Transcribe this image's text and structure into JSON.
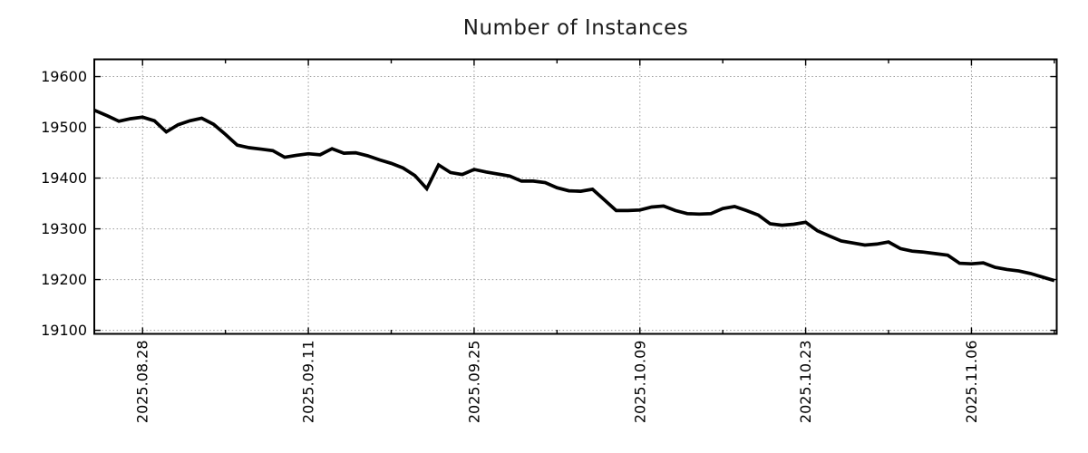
{
  "chart_data": {
    "type": "line",
    "title": "Number of Instances",
    "legend": "none",
    "grid": true,
    "background": "#ffffff",
    "line_color": "#000000",
    "grid_color": "#9a9a9a",
    "text_color": "#000000",
    "ylim": [
      19093,
      19634
    ],
    "y_ticks": [
      19100,
      19200,
      19300,
      19400,
      19500,
      19600
    ],
    "x_major_ticks": [
      {
        "index": 4,
        "label": "2025.08.28"
      },
      {
        "index": 18,
        "label": "2025.09.11"
      },
      {
        "index": 32,
        "label": "2025.09.25"
      },
      {
        "index": 46,
        "label": "2025.10.09"
      },
      {
        "index": 60,
        "label": "2025.10.23"
      },
      {
        "index": 74,
        "label": "2025.11.06"
      }
    ],
    "x_minor_tick_indices": [
      11,
      25,
      39,
      53,
      67,
      81
    ],
    "dates": [
      "2025.08.24",
      "2025.08.25",
      "2025.08.26",
      "2025.08.27",
      "2025.08.28",
      "2025.08.29",
      "2025.08.30",
      "2025.08.31",
      "2025.09.01",
      "2025.09.02",
      "2025.09.03",
      "2025.09.04",
      "2025.09.05",
      "2025.09.06",
      "2025.09.07",
      "2025.09.08",
      "2025.09.09",
      "2025.09.10",
      "2025.09.11",
      "2025.09.12",
      "2025.09.13",
      "2025.09.14",
      "2025.09.15",
      "2025.09.16",
      "2025.09.17",
      "2025.09.18",
      "2025.09.19",
      "2025.09.20",
      "2025.09.21",
      "2025.09.22",
      "2025.09.23",
      "2025.09.24",
      "2025.09.25",
      "2025.09.26",
      "2025.09.27",
      "2025.09.28",
      "2025.09.29",
      "2025.09.30",
      "2025.10.01",
      "2025.10.02",
      "2025.10.03",
      "2025.10.04",
      "2025.10.05",
      "2025.10.06",
      "2025.10.07",
      "2025.10.08",
      "2025.10.09",
      "2025.10.10",
      "2025.10.11",
      "2025.10.12",
      "2025.10.13",
      "2025.10.14",
      "2025.10.15",
      "2025.10.16",
      "2025.10.17",
      "2025.10.18",
      "2025.10.19",
      "2025.10.20",
      "2025.10.21",
      "2025.10.22",
      "2025.10.23",
      "2025.10.24",
      "2025.10.25",
      "2025.10.26",
      "2025.10.27",
      "2025.10.28",
      "2025.10.29",
      "2025.10.30",
      "2025.10.31",
      "2025.11.01",
      "2025.11.02",
      "2025.11.03",
      "2025.11.04",
      "2025.11.05",
      "2025.11.06",
      "2025.11.07",
      "2025.11.08",
      "2025.11.09",
      "2025.11.10",
      "2025.11.11",
      "2025.11.12",
      "2025.11.13"
    ],
    "values": [
      19533,
      19523,
      19512,
      19517,
      19520,
      19513,
      19491,
      19505,
      19513,
      19518,
      19506,
      19486,
      19465,
      19460,
      19457,
      19454,
      19441,
      19445,
      19448,
      19446,
      19458,
      19449,
      19450,
      19444,
      19436,
      19429,
      19420,
      19405,
      19379,
      19426,
      19411,
      19407,
      19417,
      19412,
      19408,
      19404,
      19394,
      19394,
      19391,
      19381,
      19375,
      19374,
      19378,
      19357,
      19336,
      19336,
      19337,
      19343,
      19345,
      19336,
      19330,
      19329,
      19330,
      19340,
      19344,
      19336,
      19327,
      19310,
      19307,
      19309,
      19313,
      19296,
      19286,
      19276,
      19272,
      19268,
      19270,
      19274,
      19261,
      19256,
      19254,
      19251,
      19248,
      19232,
      19231,
      19233,
      19224,
      19220,
      19217,
      19212,
      19205,
      19198
    ]
  }
}
